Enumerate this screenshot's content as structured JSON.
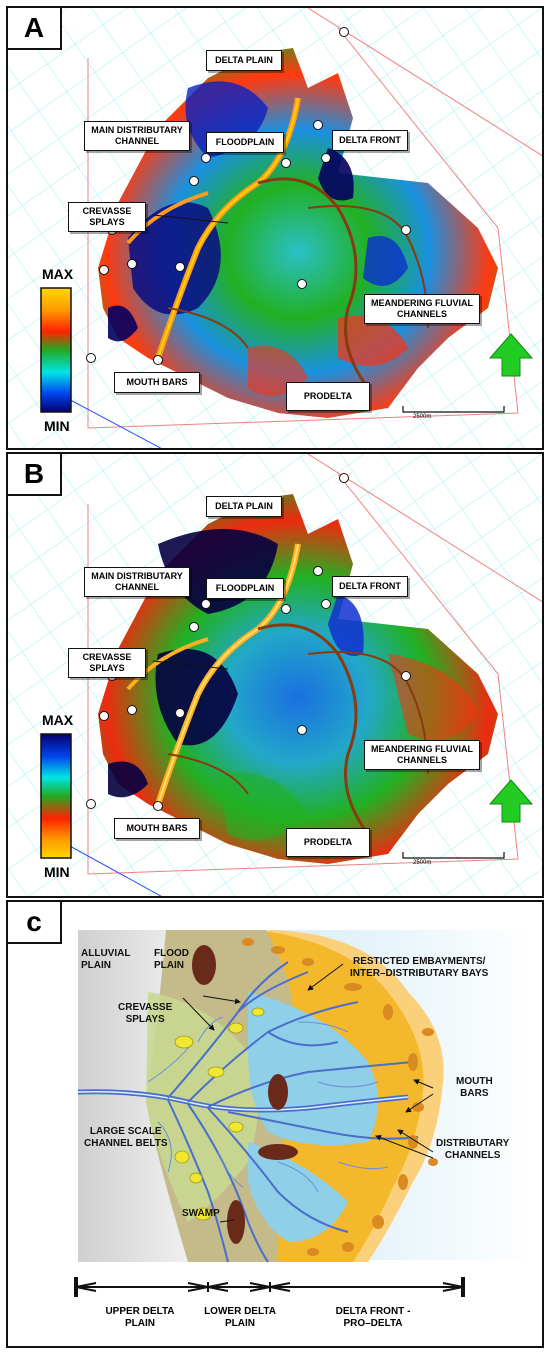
{
  "panels": {
    "a": {
      "letter": "A",
      "labels": {
        "delta_plain": "DELTA PLAIN",
        "main_distributary": "MAIN DISTRIBUTARY\nCHANNEL",
        "floodplain": "FLOODPLAIN",
        "delta_front": "DELTA FRONT",
        "crevasse_splays": "CREVASSE\nSPLAYS",
        "meandering": "MEANDERING FLUVIAL\nCHANNELS",
        "mouth_bars": "MOUTH BARS",
        "prodelta": "PRODELTA"
      },
      "legend": {
        "top": "MAX",
        "bottom": "MIN",
        "colors": [
          "#ffd700",
          "#ff9900",
          "#ff2200",
          "#22aa22",
          "#00e5e5",
          "#0044ee",
          "#050070"
        ]
      },
      "scale": "2500m"
    },
    "b": {
      "letter": "B",
      "labels": {
        "delta_plain": "DELTA PLAIN",
        "main_distributary": "MAIN DISTRIBUTARY\nCHANNEL",
        "floodplain": "FLOODPLAIN",
        "delta_front": "DELTA FRONT",
        "crevasse_splays": "CREVASSE\nSPLAYS",
        "meandering": "MEANDERING FLUVIAL\nCHANNELS",
        "mouth_bars": "MOUTH BARS",
        "prodelta": "PRODELTA"
      },
      "legend": {
        "top": "MAX",
        "bottom": "MIN",
        "colors": [
          "#050070",
          "#0044ee",
          "#00e5e5",
          "#22aa22",
          "#ff2200",
          "#ff9900",
          "#ffd700"
        ]
      },
      "scale": "2500m"
    },
    "c": {
      "letter": "c",
      "labels": {
        "alluvial_plain": "ALLUVIAL\nPLAIN",
        "flood_plain": "FLOOD\nPLAIN",
        "restricted": "RESTICTED EMBAYMENTS/\nINTER–DISTRIBUTARY BAYS",
        "crevasse_splays": "CREVASSE\nSPLAYS",
        "mouth_bars": "MOUTH\nBARS",
        "large_scale": "LARGE SCALE\nCHANNEL BELTS",
        "distributary": "DISTRIBUTARY\nCHANNELS",
        "swamp": "SWAMP"
      },
      "zones": {
        "upper": "UPPER DELTA\nPLAIN",
        "lower": "LOWER DELTA\nPLAIN",
        "front": "DELTA FRONT -\nPRO–DELTA"
      }
    }
  },
  "colors": {
    "gradient_blue": "#2a3cf0",
    "gradient_green": "#22b022",
    "gradient_red": "#ee2200",
    "gradient_yellow": "#ffc400",
    "north_arrow": "#22cc22",
    "grid": "#9ff0f0"
  }
}
